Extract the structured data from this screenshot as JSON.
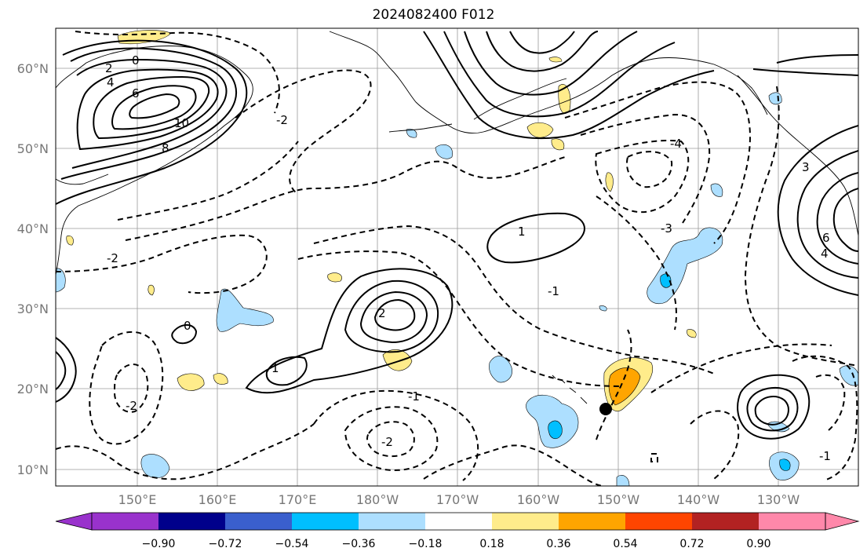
{
  "title": "2024082400 F012",
  "lat_labels": [
    "60°N",
    "50°N",
    "40°N",
    "30°N",
    "20°N",
    "10°N"
  ],
  "lon_labels": [
    "150°E",
    "160°E",
    "170°E",
    "180°W",
    "170°W",
    "160°W",
    "150°W",
    "140°W",
    "130°W"
  ],
  "colorbar": {
    "colors": [
      "#9932CC",
      "#00008B",
      "#3A5FCD",
      "#00BFFF",
      "#ADDFFF",
      "#FFFFFF",
      "#FFEC8B",
      "#FFA500",
      "#FF4500",
      "#B22222",
      "#FF88AA"
    ],
    "labels": [
      "−0.90",
      "−0.72",
      "−0.54",
      "−0.36",
      "−0.18",
      "0.18",
      "0.36",
      "0.54",
      "0.72",
      "0.90"
    ]
  },
  "contour_labels": [
    "6",
    "4",
    "2",
    "0",
    "-2",
    "-4",
    "8",
    "10",
    "-1",
    "1",
    "-3",
    "3",
    "2",
    "0",
    "-2",
    "-1",
    "1",
    "-2",
    "-2",
    "6",
    "4",
    "-1"
  ],
  "storm_marker": "storm-center"
}
